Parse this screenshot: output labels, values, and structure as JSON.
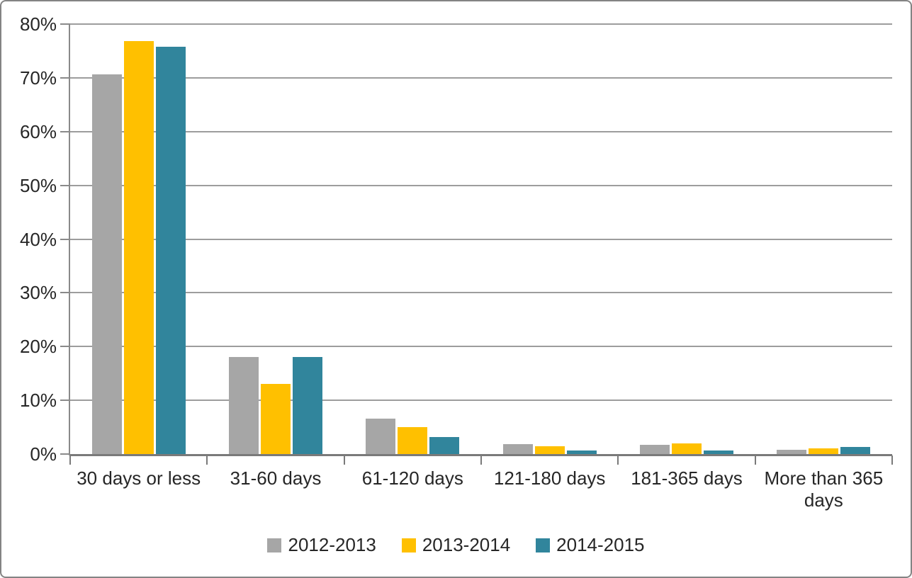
{
  "chart_data": {
    "type": "bar",
    "title": "",
    "xlabel": "",
    "ylabel": "",
    "categories": [
      "30 days or less",
      "31-60 days",
      "61-120 days",
      "121-180 days",
      "181-365 days",
      "More than 365 days"
    ],
    "series": [
      {
        "name": "2012-2013",
        "color": "#A6A6A6",
        "values": [
          70.7,
          18.0,
          6.6,
          1.8,
          1.7,
          0.8
        ]
      },
      {
        "name": "2013-2014",
        "color": "#FFC000",
        "values": [
          76.9,
          13.1,
          5.0,
          1.5,
          2.0,
          1.0
        ]
      },
      {
        "name": "2014-2015",
        "color": "#31859C",
        "values": [
          75.8,
          18.0,
          3.1,
          0.6,
          0.6,
          1.3
        ]
      }
    ],
    "y_ticks": [
      "0%",
      "10%",
      "20%",
      "30%",
      "40%",
      "50%",
      "60%",
      "70%",
      "80%"
    ],
    "ylim": [
      0,
      80
    ],
    "grid": true,
    "legend_position": "bottom",
    "colors": {
      "gridline": "#9d9d9d",
      "axis": "#7a7a7a",
      "text": "#262626",
      "background": "#ffffff",
      "border": "#848484"
    }
  }
}
